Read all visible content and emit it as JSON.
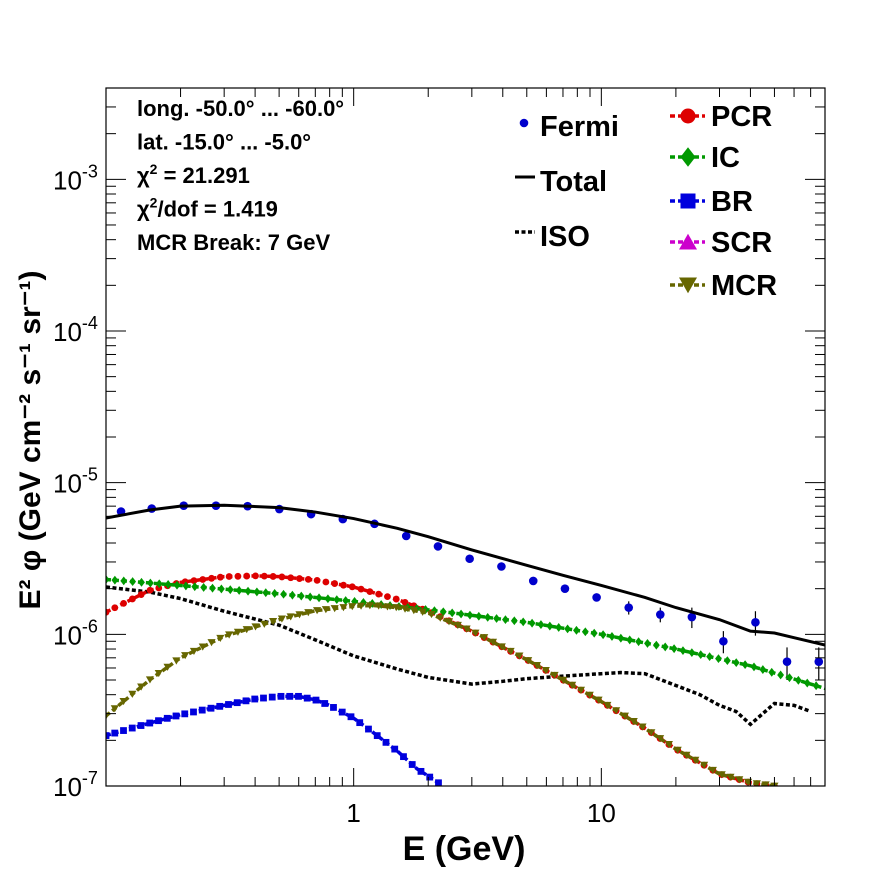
{
  "chart_data": {
    "type": "line",
    "xlabel": "E (GeV)",
    "ylabel": "E² φ (GeV cm⁻² s⁻¹ sr⁻¹)",
    "xscale": "log",
    "yscale": "log",
    "xlim": [
      0.1,
      80
    ],
    "ylim": [
      1e-07,
      0.004
    ],
    "x_tick_labels": [
      {
        "value": 1,
        "label": "1"
      },
      {
        "value": 10,
        "label": "10"
      }
    ],
    "y_tick_labels": [
      {
        "value": 1e-07,
        "base": "10",
        "exp": "-7"
      },
      {
        "value": 1e-06,
        "base": "10",
        "exp": "-6"
      },
      {
        "value": 1e-05,
        "base": "10",
        "exp": "-5"
      },
      {
        "value": 0.0001,
        "base": "10",
        "exp": "-4"
      },
      {
        "value": 0.001,
        "base": "10",
        "exp": "-3"
      }
    ],
    "info_lines": [
      "long. -50.0° ... -60.0°",
      "lat. -15.0° ... -5.0°",
      "χ² = 21.291",
      "χ²/dof = 1.419",
      "MCR Break:  7 GeV"
    ],
    "legend": [
      {
        "name": "Fermi",
        "style": "points",
        "color": "#0000cc"
      },
      {
        "name": "Total",
        "style": "solid",
        "color": "#000000"
      },
      {
        "name": "ISO",
        "style": "dotted",
        "color": "#000000"
      },
      {
        "name": "PCR",
        "style": "circle",
        "color": "#dd0000"
      },
      {
        "name": "IC",
        "style": "diamond",
        "color": "#009900"
      },
      {
        "name": "BR",
        "style": "square",
        "color": "#0000dd"
      },
      {
        "name": "SCR",
        "style": "triangle-up",
        "color": "#cc00cc"
      },
      {
        "name": "MCR",
        "style": "triangle-down",
        "color": "#666600"
      }
    ],
    "series": [
      {
        "name": "Fermi",
        "kind": "points",
        "color": "#0000cc",
        "x": [
          0.115,
          0.153,
          0.206,
          0.278,
          0.373,
          0.501,
          0.673,
          0.904,
          1.214,
          1.63,
          2.19,
          2.94,
          3.95,
          5.31,
          7.13,
          9.57,
          12.9,
          17.3,
          23.2,
          31.1,
          41.9,
          56.2,
          75.5
        ],
        "y": [
          6.45e-06,
          6.75e-06,
          7.05e-06,
          7.05e-06,
          7e-06,
          6.7e-06,
          6.2e-06,
          5.75e-06,
          5.35e-06,
          4.45e-06,
          3.8e-06,
          3.15e-06,
          2.8e-06,
          2.25e-06,
          2e-06,
          1.75e-06,
          1.5e-06,
          1.35e-06,
          1.3e-06,
          9e-07,
          1.2e-06,
          6.6e-07,
          6.6e-07
        ],
        "err": [
          0,
          0,
          0,
          0,
          0,
          0,
          0,
          0,
          0,
          0,
          0,
          0,
          0,
          0,
          0,
          1e-07,
          1.5e-07,
          1.5e-07,
          2e-07,
          1.5e-07,
          2.2e-07,
          1.6e-07,
          1.6e-07
        ]
      },
      {
        "name": "Total",
        "kind": "solid",
        "color": "#000000",
        "x": [
          0.1,
          0.15,
          0.2,
          0.3,
          0.5,
          0.7,
          1.0,
          1.5,
          2.0,
          3.0,
          5.0,
          7.0,
          10.0,
          15.0,
          20.0,
          30.0,
          40.0,
          50.0,
          60.0,
          80.0
        ],
        "y": [
          5.85e-06,
          6.6e-06,
          7e-06,
          7.1e-06,
          6.85e-06,
          6.4e-06,
          5.8e-06,
          5e-06,
          4.4e-06,
          3.6e-06,
          2.85e-06,
          2.45e-06,
          2.1e-06,
          1.75e-06,
          1.5e-06,
          1.25e-06,
          1.05e-06,
          1.02e-06,
          9.5e-07,
          8.5e-07
        ]
      },
      {
        "name": "ISO",
        "kind": "dotted",
        "color": "#000000",
        "x": [
          0.1,
          0.15,
          0.2,
          0.3,
          0.5,
          0.7,
          1.0,
          1.5,
          2.0,
          3.0,
          4.0,
          5.0,
          7.0,
          10.0,
          12.0,
          15.0,
          20.0,
          25.0,
          30.0,
          35.0,
          40.0,
          50.0,
          60.0,
          70.0
        ],
        "y": [
          2.05e-06,
          1.9e-06,
          1.72e-06,
          1.42e-06,
          1.15e-06,
          9.2e-07,
          7.2e-07,
          5.9e-07,
          5.2e-07,
          4.7e-07,
          4.9e-07,
          5.1e-07,
          5.3e-07,
          5.5e-07,
          5.6e-07,
          5.5e-07,
          4.6e-07,
          4e-07,
          3.4e-07,
          3.1e-07,
          2.55e-07,
          3.5e-07,
          3.4e-07,
          3.1e-07
        ]
      },
      {
        "name": "PCR",
        "kind": "circle",
        "color": "#dd0000",
        "x": [
          0.1,
          0.15,
          0.2,
          0.3,
          0.4,
          0.5,
          0.7,
          1.0,
          1.5,
          2.0,
          3.0,
          5.0,
          7.0,
          10.0,
          15.0,
          20.0,
          30.0,
          40.0,
          50.0
        ],
        "y": [
          1.4e-06,
          1.95e-06,
          2.2e-06,
          2.4e-06,
          2.43e-06,
          2.4e-06,
          2.28e-06,
          2.05e-06,
          1.7e-06,
          1.42e-06,
          1.05e-06,
          6.8e-07,
          5e-07,
          3.6e-07,
          2.4e-07,
          1.75e-07,
          1.2e-07,
          1.05e-07,
          1e-07
        ]
      },
      {
        "name": "IC",
        "kind": "diamond",
        "color": "#009900",
        "x": [
          0.1,
          0.2,
          0.5,
          1.0,
          2.0,
          5.0,
          10.0,
          20.0,
          40.0,
          80.0
        ],
        "y": [
          2.3e-06,
          2.1e-06,
          1.85e-06,
          1.65e-06,
          1.45e-06,
          1.2e-06,
          1e-06,
          8e-07,
          6.2e-07,
          4.4e-07
        ]
      },
      {
        "name": "BR",
        "kind": "square",
        "color": "#0000dd",
        "x": [
          0.1,
          0.15,
          0.2,
          0.3,
          0.4,
          0.5,
          0.6,
          0.7,
          0.8,
          1.0,
          1.2,
          1.5,
          1.8,
          2.2
        ],
        "y": [
          2.15e-07,
          2.6e-07,
          2.95e-07,
          3.4e-07,
          3.75e-07,
          3.9e-07,
          3.9e-07,
          3.7e-07,
          3.4e-07,
          2.8e-07,
          2.25e-07,
          1.7e-07,
          1.3e-07,
          1.05e-07
        ]
      },
      {
        "name": "MCR",
        "kind": "triangle-down",
        "color": "#666600",
        "x": [
          0.1,
          0.15,
          0.2,
          0.3,
          0.5,
          0.7,
          1.0,
          1.2,
          1.5,
          2.0,
          3.0,
          5.0,
          7.0,
          10.0,
          15.0,
          20.0,
          30.0,
          40.0,
          50.0
        ],
        "y": [
          2.9e-07,
          5e-07,
          7e-07,
          9.7e-07,
          1.25e-06,
          1.43e-06,
          1.53e-06,
          1.55e-06,
          1.5e-06,
          1.38e-06,
          1.05e-06,
          6.8e-07,
          5e-07,
          3.6e-07,
          2.4e-07,
          1.75e-07,
          1.2e-07,
          1.05e-07,
          1e-07
        ]
      }
    ]
  }
}
